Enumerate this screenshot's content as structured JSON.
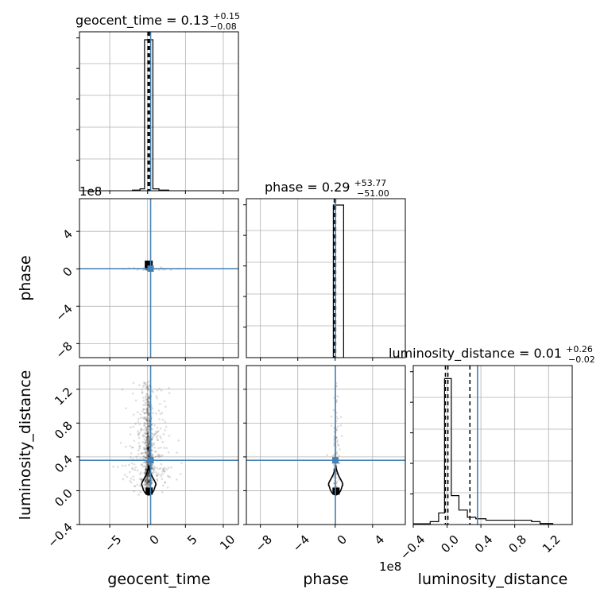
{
  "chart_data": {
    "type": "scatter",
    "variables": [
      "geocent_time",
      "phase",
      "luminosity_distance"
    ],
    "axis_labels": {
      "geocent_time": "geocent_time",
      "phase": "phase",
      "luminosity_distance": "luminosity_distance"
    },
    "offset_multipliers": {
      "phase_axis": "1e8",
      "luminosity_distance_axis": "1e8"
    },
    "ranges": {
      "geocent_time": [
        -9,
        12
      ],
      "phase": [
        -9.5,
        7.5
      ],
      "luminosity_distance": [
        -0.4,
        1.48
      ]
    },
    "ticks": {
      "geocent_time": [
        "−5",
        "0",
        "5",
        "10"
      ],
      "phase": [
        "−8",
        "−4",
        "0",
        "4"
      ],
      "luminosity_distance": [
        "−0.4",
        "0.0",
        "0.4",
        "0.8",
        "1.2"
      ]
    },
    "truth": {
      "geocent_time": 0.4,
      "phase": 0.02,
      "luminosity_distance": 0.36
    },
    "truth_color": "#4682b4",
    "grid": true,
    "marginals": [
      {
        "variable": "geocent_time",
        "title": {
          "prefix": "geocent_time = 0.13",
          "plus": "+0.15",
          "minus": "−0.08"
        },
        "quantiles": [
          0.05,
          0.13,
          0.28
        ],
        "ylim": [
          0,
          1
        ],
        "bins": [
          {
            "x0": -2.0,
            "x1": -1.0,
            "h": 0.004
          },
          {
            "x0": -1.0,
            "x1": -0.4,
            "h": 0.012
          },
          {
            "x0": -0.4,
            "x1": 0.0,
            "h": 0.95
          },
          {
            "x0": 0.0,
            "x1": 0.7,
            "h": 0.95
          },
          {
            "x0": 0.7,
            "x1": 1.5,
            "h": 0.012
          },
          {
            "x0": 1.5,
            "x1": 2.8,
            "h": 0.004
          }
        ]
      },
      {
        "variable": "phase",
        "title": {
          "prefix": "phase = 0.29",
          "plus": "+53.77",
          "minus": "−51.00"
        },
        "quantiles": [
          -0.1,
          0.0,
          0.05
        ],
        "ylim": [
          0,
          1
        ],
        "bins": [
          {
            "x0": -0.2,
            "x1": 0.0,
            "h": 0.96
          },
          {
            "x0": 0.0,
            "x1": 0.9,
            "h": 0.96
          }
        ]
      },
      {
        "variable": "luminosity_distance",
        "title": {
          "prefix": "luminosity_distance = 0.01",
          "plus": "+0.26",
          "minus": "−0.02"
        },
        "quantiles": [
          -0.02,
          0.01,
          0.27
        ],
        "ylim": [
          0,
          1.1
        ],
        "bins": [
          {
            "x0": -0.4,
            "x1": -0.2,
            "h": 0.005
          },
          {
            "x0": -0.2,
            "x1": -0.1,
            "h": 0.02
          },
          {
            "x0": -0.1,
            "x1": -0.03,
            "h": 0.08
          },
          {
            "x0": -0.03,
            "x1": 0.05,
            "h": 1.01
          },
          {
            "x0": 0.05,
            "x1": 0.14,
            "h": 0.2
          },
          {
            "x0": 0.14,
            "x1": 0.24,
            "h": 0.1
          },
          {
            "x0": 0.24,
            "x1": 0.34,
            "h": 0.05
          },
          {
            "x0": 0.34,
            "x1": 0.46,
            "h": 0.04
          },
          {
            "x0": 0.46,
            "x1": 1.0,
            "h": 0.03
          },
          {
            "x0": 1.0,
            "x1": 1.1,
            "h": 0.02
          },
          {
            "x0": 1.1,
            "x1": 1.25,
            "h": 0.007
          }
        ]
      }
    ]
  }
}
